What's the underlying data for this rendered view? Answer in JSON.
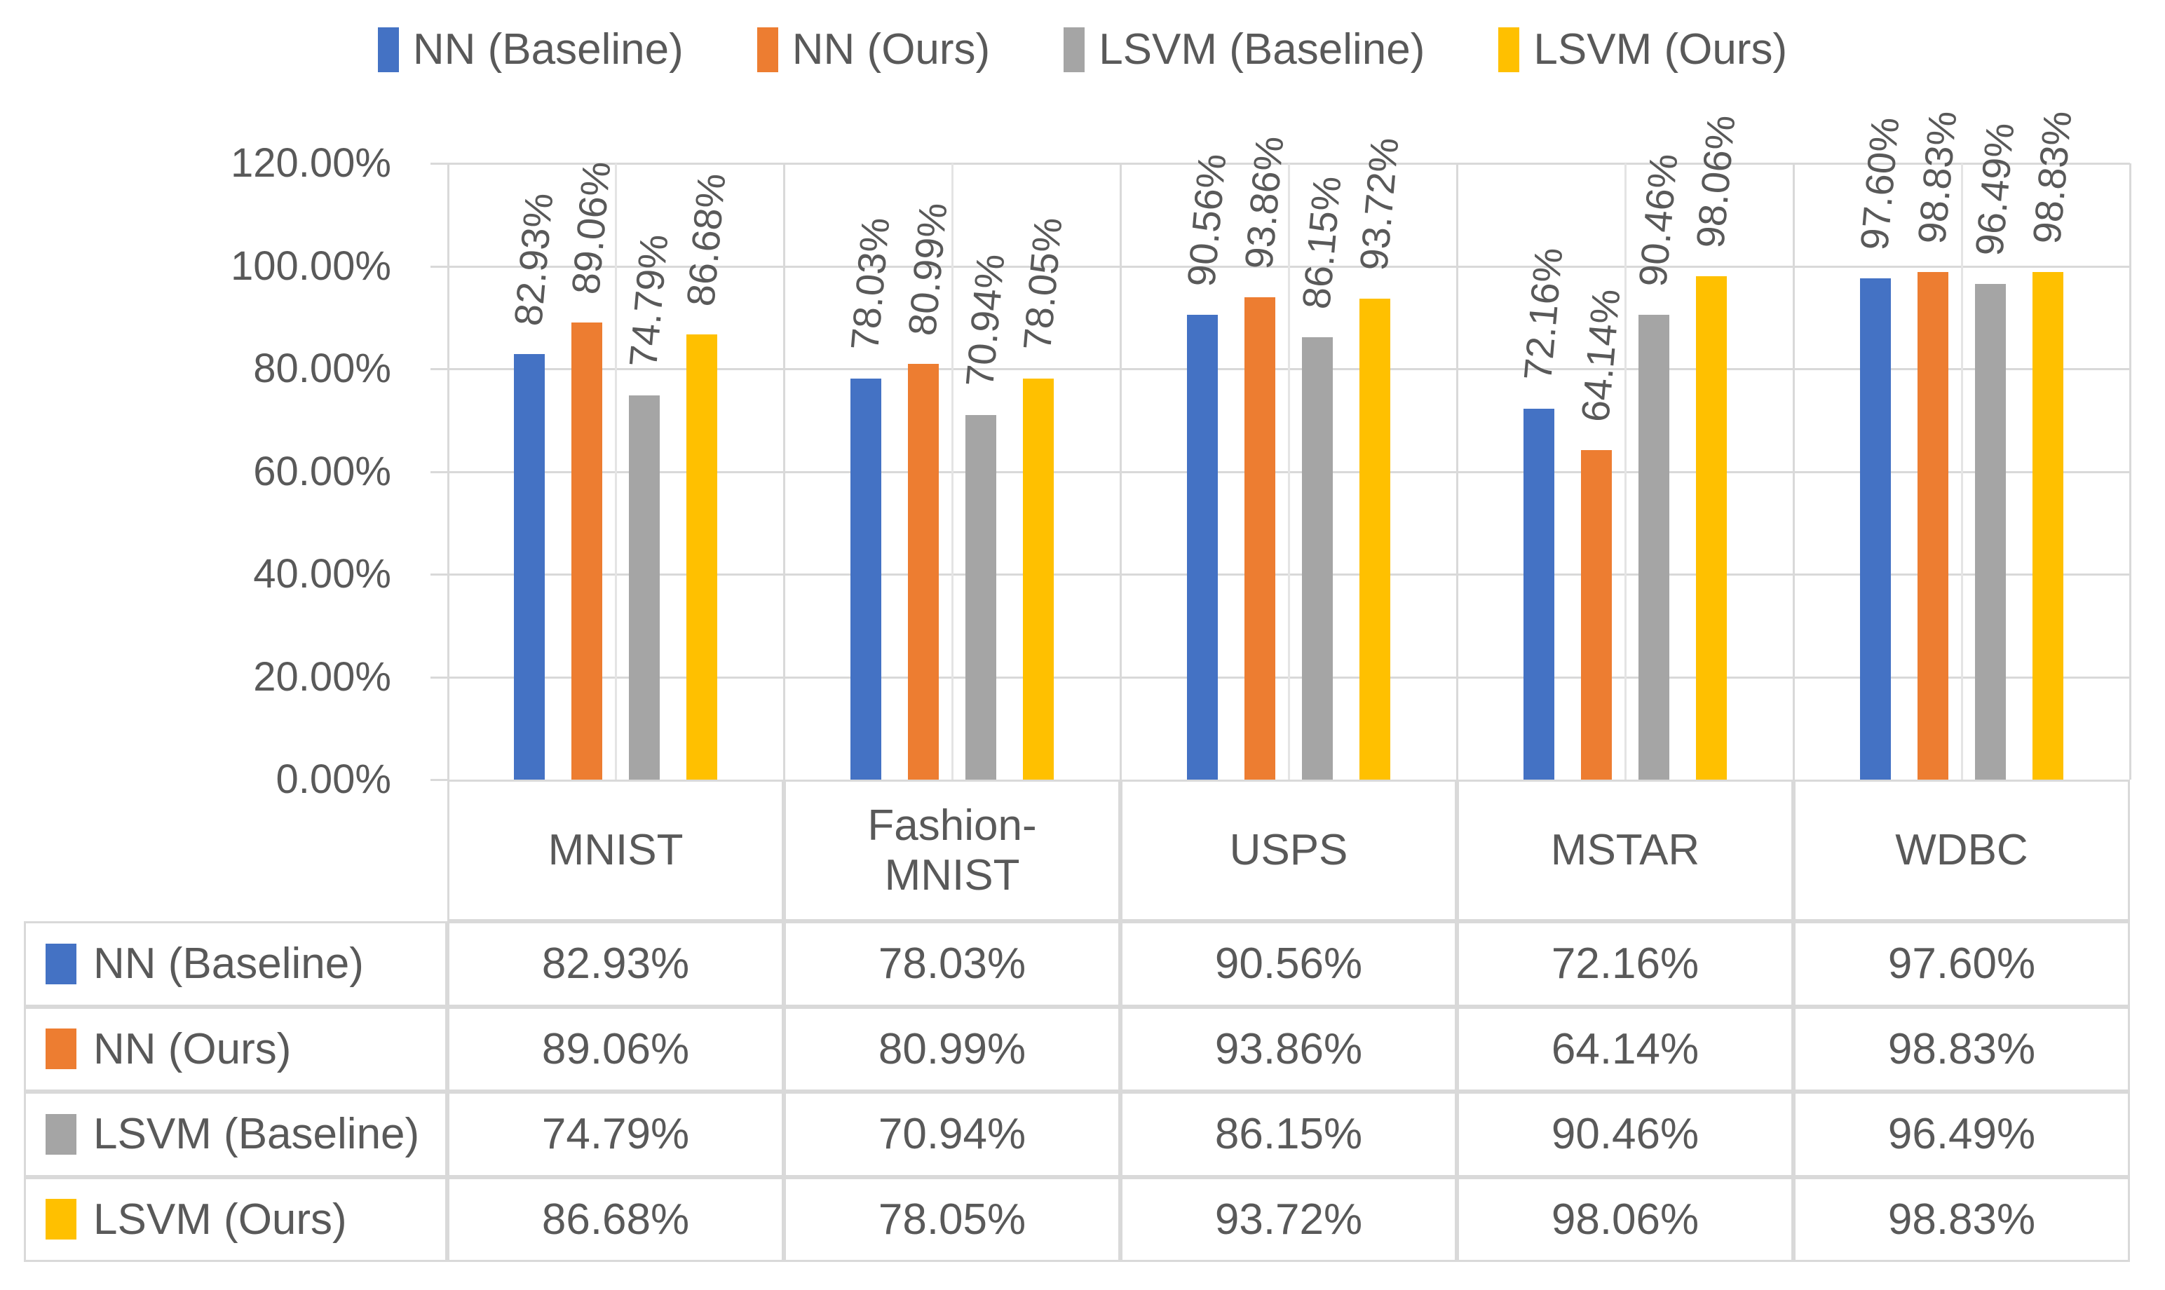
{
  "chart_data": {
    "type": "bar",
    "title": "",
    "categories": [
      "MNIST",
      "Fashion-MNIST",
      "USPS",
      "MSTAR",
      "WDBC"
    ],
    "series": [
      {
        "name": "NN (Baseline)",
        "color": "#4472C4",
        "values": [
          82.93,
          78.03,
          90.56,
          72.16,
          97.6
        ]
      },
      {
        "name": "NN (Ours)",
        "color": "#ED7D31",
        "values": [
          89.06,
          80.99,
          93.86,
          64.14,
          98.83
        ]
      },
      {
        "name": "LSVM (Baseline)",
        "color": "#A5A5A5",
        "values": [
          74.79,
          70.94,
          86.15,
          90.46,
          96.49
        ]
      },
      {
        "name": "LSVM (Ours)",
        "color": "#FFC000",
        "values": [
          86.68,
          78.05,
          93.72,
          98.06,
          98.83
        ]
      }
    ],
    "value_format": {
      "decimals": 2,
      "suffix": "%"
    },
    "data_labels": {
      "shown": true,
      "rotated": true
    },
    "y_axis": {
      "min": 0,
      "max": 120,
      "step": 20,
      "tick_labels": [
        "120.00%",
        "100.00%",
        "80.00%",
        "60.00%",
        "40.00%",
        "20.00%",
        "0.00%"
      ]
    },
    "legend_position": "top",
    "grid": {
      "horizontal": true,
      "vertical": true
    },
    "data_table_shown": true,
    "colors": {
      "text": "#595959",
      "grid": "#D9D9D9",
      "grid_minor": "#E4E4E4"
    }
  }
}
